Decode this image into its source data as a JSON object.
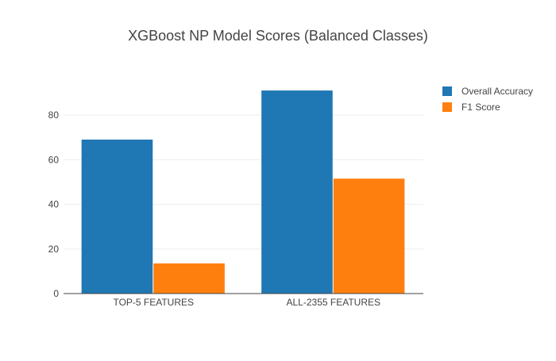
{
  "chart_data": {
    "type": "bar",
    "title": "XGBoost NP Model Scores (Balanced Classes)",
    "xlabel": "",
    "ylabel": "",
    "categories": [
      "TOP-5 FEATURES",
      "ALL-2355 FEATURES"
    ],
    "series": [
      {
        "name": "Overall Accuracy",
        "values": [
          69,
          91
        ],
        "color": "#1f77b4"
      },
      {
        "name": "F1 Score",
        "values": [
          13.5,
          51.5
        ],
        "color": "#ff7f0e"
      }
    ],
    "ylim": [
      0,
      96
    ],
    "yticks": [
      0,
      20,
      40,
      60,
      80
    ],
    "grid": true,
    "legend_position": "top-right"
  }
}
